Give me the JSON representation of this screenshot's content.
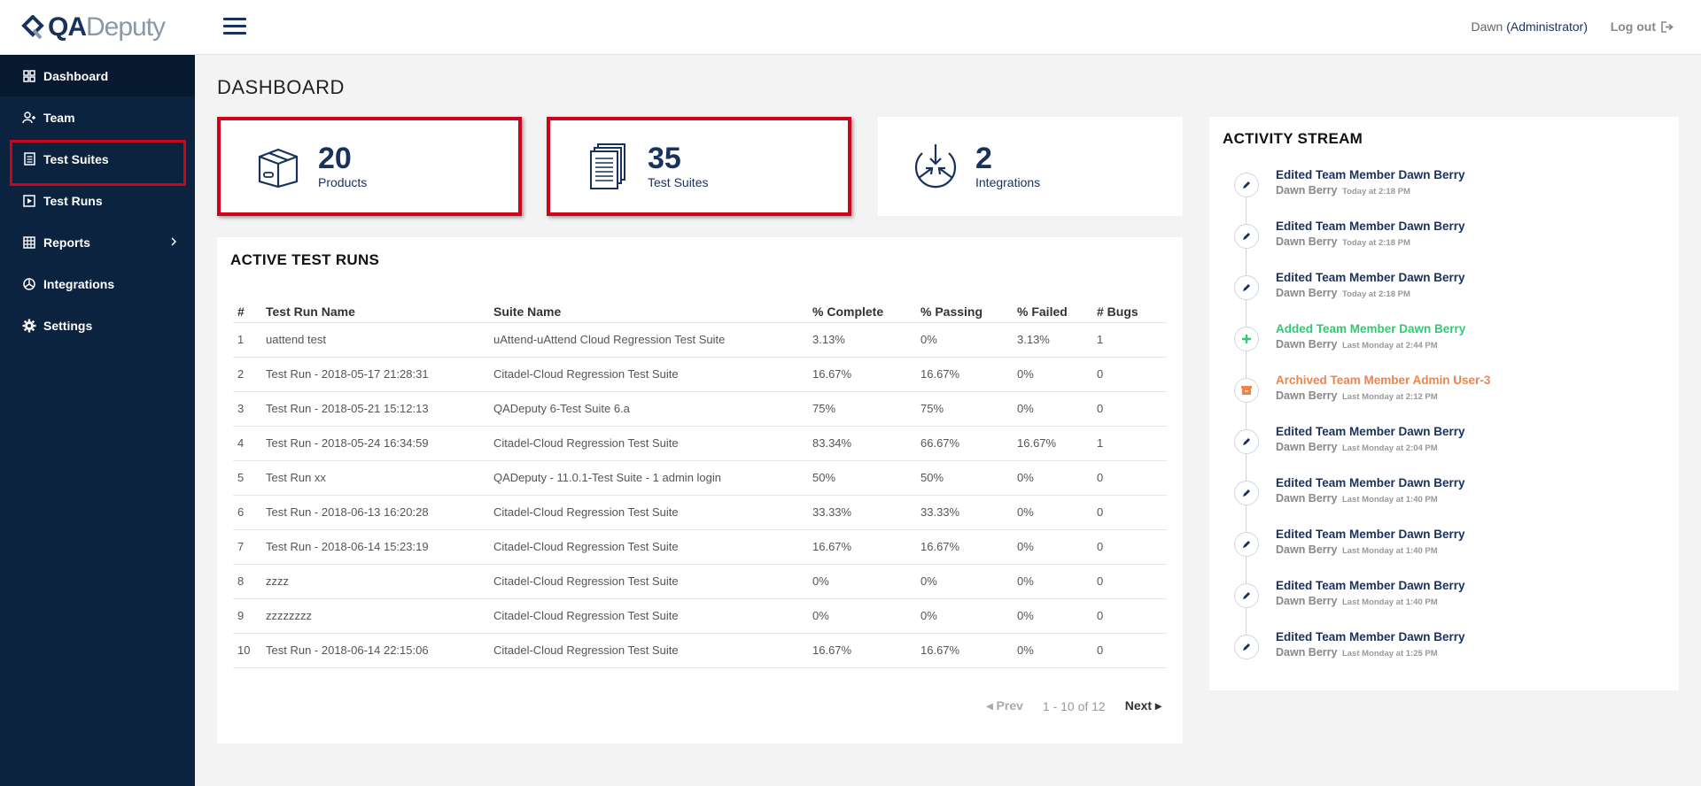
{
  "app": {
    "logo_primary": "QA",
    "logo_secondary": "Deputy"
  },
  "sidebar": {
    "items": [
      {
        "label": "Dashboard",
        "icon": "grid-icon"
      },
      {
        "label": "Team",
        "icon": "users-icon"
      },
      {
        "label": "Test Suites",
        "icon": "document-icon"
      },
      {
        "label": "Test Runs",
        "icon": "play-icon"
      },
      {
        "label": "Reports",
        "icon": "table-icon"
      },
      {
        "label": "Integrations",
        "icon": "integration-icon"
      },
      {
        "label": "Settings",
        "icon": "gear-icon"
      }
    ]
  },
  "header": {
    "user_name": "Dawn",
    "user_role": "(Administrator)",
    "logout_label": "Log out"
  },
  "page": {
    "title": "DASHBOARD"
  },
  "stats": [
    {
      "value": "20",
      "label": "Products",
      "icon": "box-icon"
    },
    {
      "value": "35",
      "label": "Test Suites",
      "icon": "documents-icon"
    },
    {
      "value": "2",
      "label": "Integrations",
      "icon": "converge-icon"
    }
  ],
  "runs": {
    "title": "ACTIVE TEST RUNS",
    "columns": [
      "#",
      "Test Run Name",
      "Suite Name",
      "% Complete",
      "% Passing",
      "% Failed",
      "# Bugs"
    ],
    "rows": [
      [
        "1",
        "uattend test",
        "uAttend-uAttend Cloud Regression Test Suite",
        "3.13%",
        "0%",
        "3.13%",
        "1"
      ],
      [
        "2",
        "Test Run - 2018-05-17 21:28:31",
        "Citadel-Cloud Regression Test Suite",
        "16.67%",
        "16.67%",
        "0%",
        "0"
      ],
      [
        "3",
        "Test Run - 2018-05-21 15:12:13",
        "QADeputy 6-Test Suite 6.a",
        "75%",
        "75%",
        "0%",
        "0"
      ],
      [
        "4",
        "Test Run - 2018-05-24 16:34:59",
        "Citadel-Cloud Regression Test Suite",
        "83.34%",
        "66.67%",
        "16.67%",
        "1"
      ],
      [
        "5",
        "Test Run xx",
        "QADeputy - 11.0.1-Test Suite - 1 admin login",
        "50%",
        "50%",
        "0%",
        "0"
      ],
      [
        "6",
        "Test Run - 2018-06-13 16:20:28",
        "Citadel-Cloud Regression Test Suite",
        "33.33%",
        "33.33%",
        "0%",
        "0"
      ],
      [
        "7",
        "Test Run - 2018-06-14 15:23:19",
        "Citadel-Cloud Regression Test Suite",
        "16.67%",
        "16.67%",
        "0%",
        "0"
      ],
      [
        "8",
        "zzzz",
        "Citadel-Cloud Regression Test Suite",
        "0%",
        "0%",
        "0%",
        "0"
      ],
      [
        "9",
        "zzzzzzzz",
        "Citadel-Cloud Regression Test Suite",
        "0%",
        "0%",
        "0%",
        "0"
      ],
      [
        "10",
        "Test Run - 2018-06-14 22:15:06",
        "Citadel-Cloud Regression Test Suite",
        "16.67%",
        "16.67%",
        "0%",
        "0"
      ]
    ],
    "pager": {
      "prev": "Prev",
      "range": "1 - 10 of 12",
      "next": "Next"
    }
  },
  "activity": {
    "title": "ACTIVITY STREAM",
    "items": [
      {
        "type": "edit",
        "title": "Edited Team Member Dawn Berry",
        "user": "Dawn Berry",
        "time": "Today at 2:18 PM"
      },
      {
        "type": "edit",
        "title": "Edited Team Member Dawn Berry",
        "user": "Dawn Berry",
        "time": "Today at 2:18 PM"
      },
      {
        "type": "edit",
        "title": "Edited Team Member Dawn Berry",
        "user": "Dawn Berry",
        "time": "Today at 2:18 PM"
      },
      {
        "type": "add",
        "title": "Added Team Member Dawn Berry",
        "user": "Dawn Berry",
        "time": "Last Monday at 2:44 PM"
      },
      {
        "type": "archive",
        "title": "Archived Team Member Admin User-3",
        "user": "Dawn Berry",
        "time": "Last Monday at 2:12 PM"
      },
      {
        "type": "edit",
        "title": "Edited Team Member Dawn Berry",
        "user": "Dawn Berry",
        "time": "Last Monday at 2:04 PM"
      },
      {
        "type": "edit",
        "title": "Edited Team Member Dawn Berry",
        "user": "Dawn Berry",
        "time": "Last Monday at 1:40 PM"
      },
      {
        "type": "edit",
        "title": "Edited Team Member Dawn Berry",
        "user": "Dawn Berry",
        "time": "Last Monday at 1:40 PM"
      },
      {
        "type": "edit",
        "title": "Edited Team Member Dawn Berry",
        "user": "Dawn Berry",
        "time": "Last Monday at 1:40 PM"
      },
      {
        "type": "edit",
        "title": "Edited Team Member Dawn Berry",
        "user": "Dawn Berry",
        "time": "Last Monday at 1:25 PM"
      }
    ]
  },
  "colors": {
    "sidebar_bg": "#0c2340",
    "brand_navy": "#17325c",
    "highlight_red": "#d0021b",
    "add_green": "#2ecc71",
    "archive_orange": "#f0834b"
  }
}
